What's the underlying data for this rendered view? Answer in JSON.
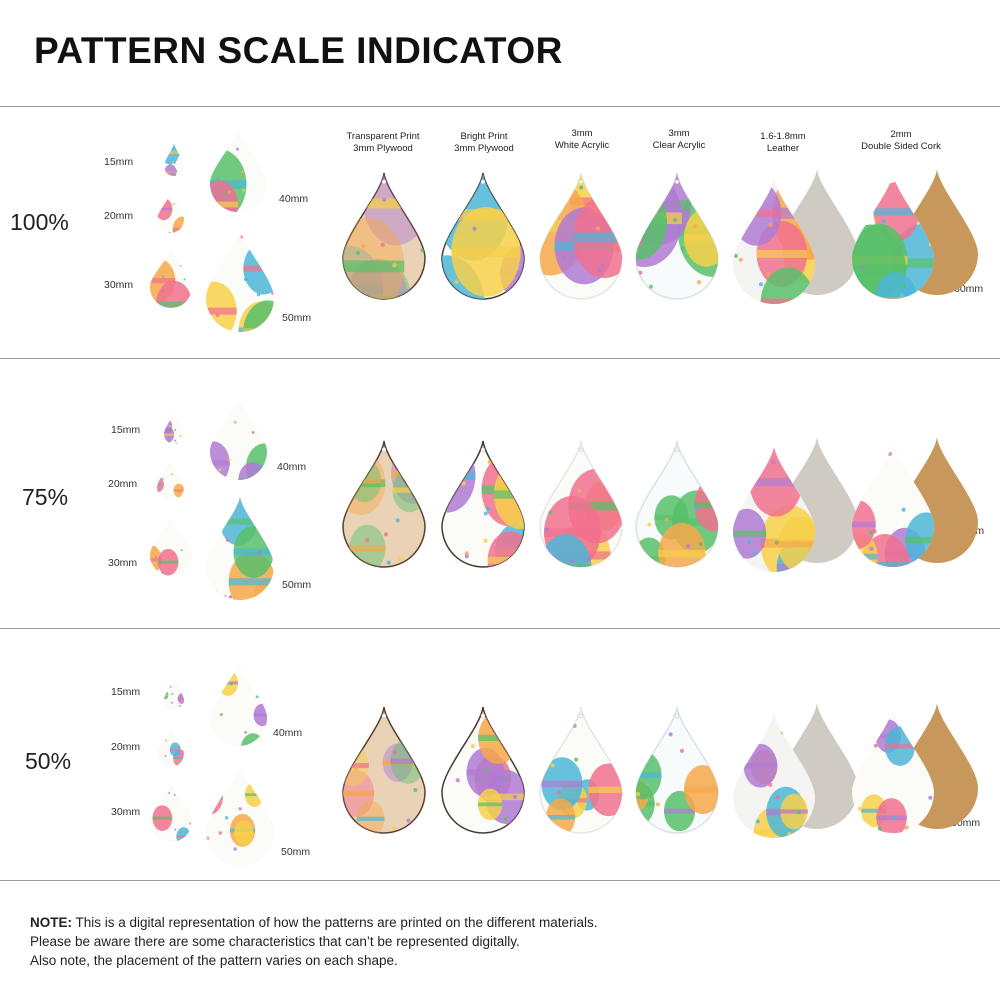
{
  "title": "PATTERN SCALE INDICATOR",
  "materials": [
    {
      "line1": "Transparent Print",
      "line2": "3mm Plywood"
    },
    {
      "line1": "Bright Print",
      "line2": "3mm Plywood"
    },
    {
      "line1": "3mm",
      "line2": "White Acrylic"
    },
    {
      "line1": "3mm",
      "line2": "Clear Acrylic"
    },
    {
      "line1": "1.6-1.8mm",
      "line2": "Leather"
    },
    {
      "line1": "2mm",
      "line2": "Double Sided Cork"
    }
  ],
  "sizes": [
    "15mm",
    "20mm",
    "30mm",
    "40mm",
    "50mm"
  ],
  "large_size": "60mm",
  "sections": [
    {
      "scale": "100%"
    },
    {
      "scale": "75%"
    },
    {
      "scale": "50%"
    }
  ],
  "note": {
    "label": "NOTE:",
    "line1": " This is a digital representation of how the patterns are printed on the different materials.",
    "line2": "Please be aware there are some characteristics that can’t be represented digitally.",
    "line3": "Also note, the placement of the pattern varies on each shape."
  },
  "colors": {
    "plywood": "#e9d2b6",
    "white": "#fbfbf8",
    "leather_back": "#cfcbc2",
    "cork": "#c8975c",
    "egg_pink": "#f1718f",
    "egg_yellow": "#f7d04a",
    "egg_orange": "#f6a84a",
    "egg_blue": "#4cb6d8",
    "egg_purple": "#b07ad4",
    "egg_green": "#58c06a"
  }
}
